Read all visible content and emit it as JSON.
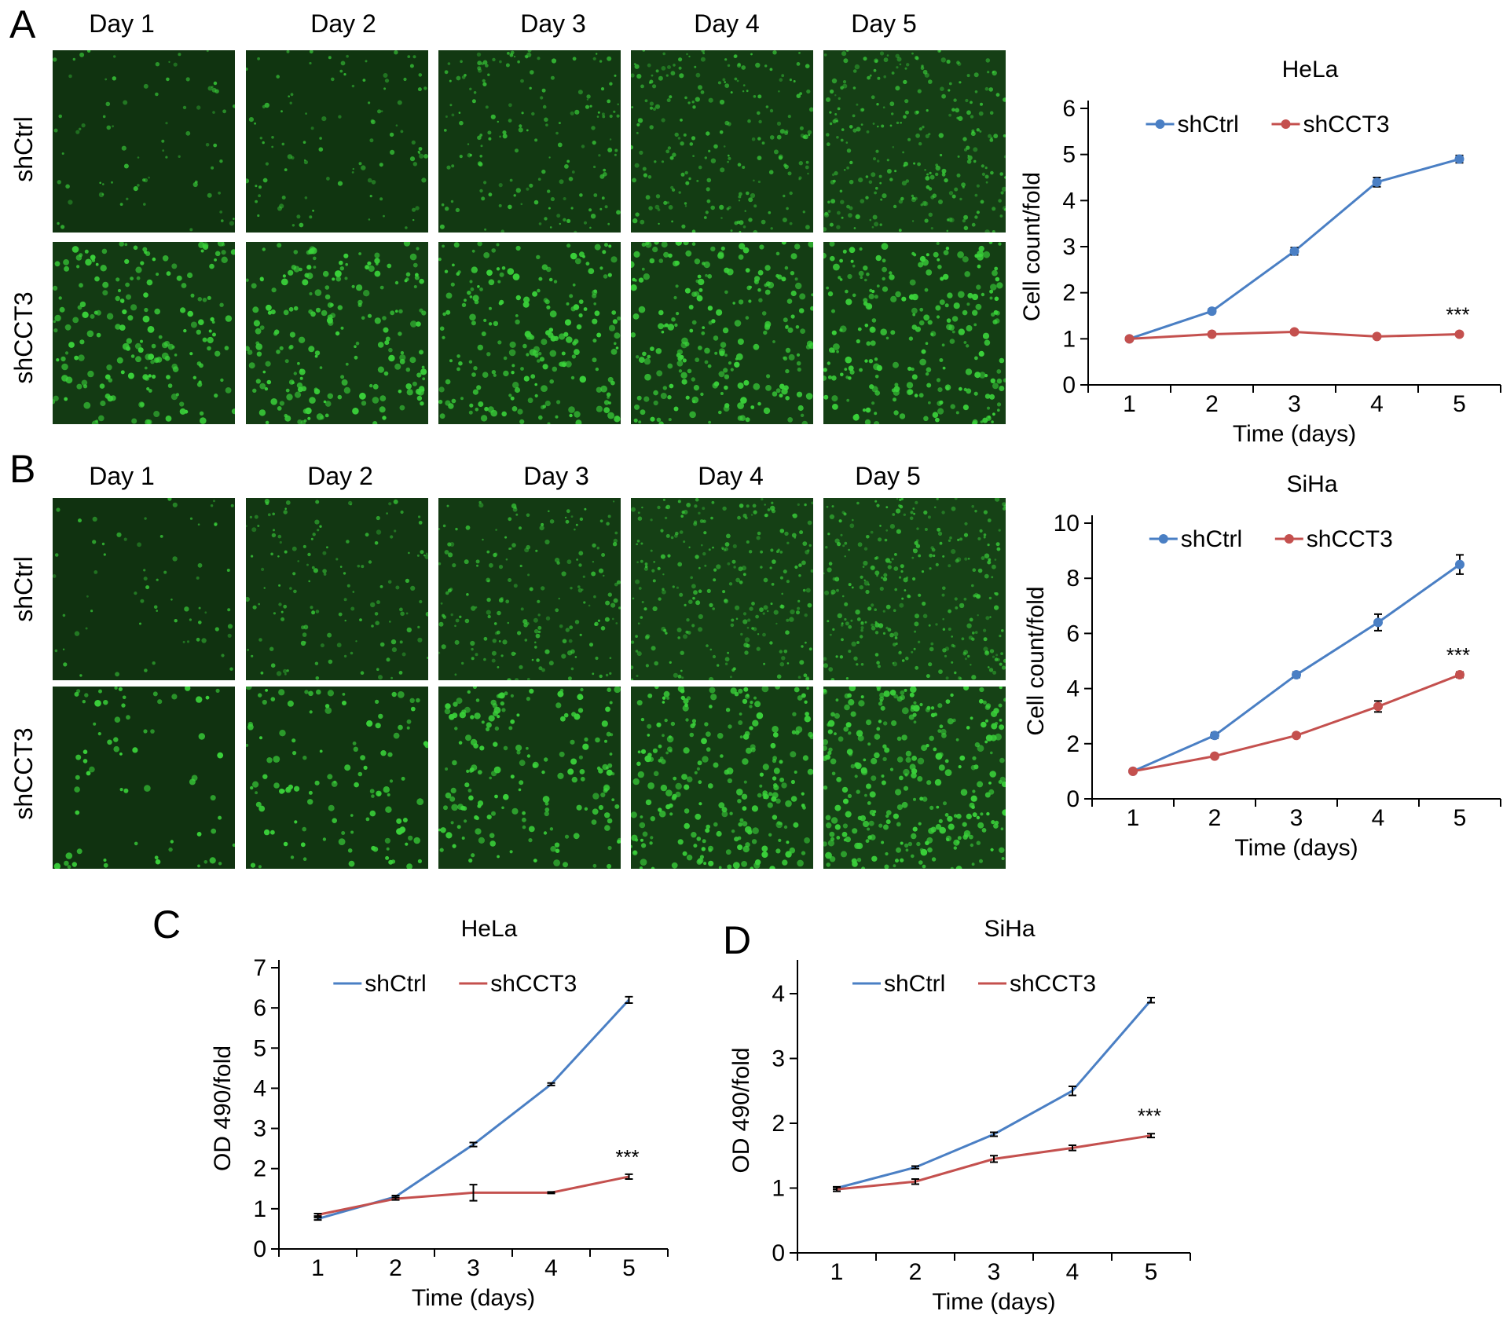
{
  "panel_a": {
    "letter": "A",
    "day_labels": [
      "Day 1",
      "Day 2",
      "Day 3",
      "Day 4",
      "Day 5"
    ],
    "row_labels": [
      "shCtrl",
      "shCCT3"
    ]
  },
  "panel_b": {
    "letter": "B",
    "day_labels": [
      "Day 1",
      "Day 2",
      "Day 3",
      "Day 4",
      "Day 5"
    ],
    "row_labels": [
      "shCtrl",
      "shCCT3"
    ]
  },
  "panel_c": {
    "letter": "C"
  },
  "panel_d": {
    "letter": "D"
  },
  "colors": {
    "shCtrl": "#4a7fc4",
    "shCCT3": "#c4504e",
    "fluorescence": "#3ad13a",
    "background": "#0d2a0d"
  },
  "micrograph_density": {
    "panel_a": {
      "shCtrl": [
        0.15,
        0.25,
        0.5,
        0.7,
        0.9
      ],
      "shCCT3": [
        0.6,
        0.65,
        0.7,
        0.75,
        0.8
      ]
    },
    "panel_b": {
      "shCtrl": [
        0.1,
        0.4,
        0.6,
        0.85,
        1.0
      ],
      "shCCT3": [
        0.1,
        0.3,
        0.55,
        0.8,
        1.0
      ]
    }
  },
  "chart_data": [
    {
      "id": "A",
      "type": "line",
      "title": "HeLa",
      "xlabel": "Time (days)",
      "ylabel": "Cell count/fold",
      "x": [
        1,
        2,
        3,
        4,
        5
      ],
      "xlim": [
        0.5,
        5.5
      ],
      "ylim": [
        0,
        6
      ],
      "yticks": [
        0,
        1,
        2,
        3,
        4,
        5,
        6
      ],
      "markers": true,
      "series": [
        {
          "name": "shCtrl",
          "values": [
            1.0,
            1.6,
            2.9,
            4.4,
            4.9
          ],
          "errors": [
            0.03,
            0.05,
            0.08,
            0.1,
            0.08
          ]
        },
        {
          "name": "shCCT3",
          "values": [
            1.0,
            1.1,
            1.15,
            1.05,
            1.1
          ],
          "errors": [
            0.03,
            0.03,
            0.03,
            0.03,
            0.03
          ]
        }
      ],
      "significance": "***",
      "legend": "top"
    },
    {
      "id": "B",
      "type": "line",
      "title": "SiHa",
      "xlabel": "Time (days)",
      "ylabel": "Cell count/fold",
      "x": [
        1,
        2,
        3,
        4,
        5
      ],
      "xlim": [
        0.5,
        5.5
      ],
      "ylim": [
        0,
        10
      ],
      "yticks": [
        0,
        2,
        4,
        6,
        8,
        10
      ],
      "markers": true,
      "series": [
        {
          "name": "shCtrl",
          "values": [
            1.0,
            2.3,
            4.5,
            6.4,
            8.5
          ],
          "errors": [
            0.05,
            0.1,
            0.1,
            0.3,
            0.35
          ]
        },
        {
          "name": "shCCT3",
          "values": [
            1.0,
            1.55,
            2.3,
            3.35,
            4.5
          ],
          "errors": [
            0.05,
            0.05,
            0.05,
            0.2,
            0.1
          ]
        }
      ],
      "significance": "***",
      "legend": "top"
    },
    {
      "id": "C",
      "type": "line",
      "title": "HeLa",
      "xlabel": "Time (days)",
      "ylabel": "OD 490/fold",
      "x": [
        1,
        2,
        3,
        4,
        5
      ],
      "xlim": [
        0.5,
        5.5
      ],
      "ylim": [
        0,
        7
      ],
      "yticks": [
        0,
        1,
        2,
        3,
        4,
        5,
        6,
        7
      ],
      "markers": false,
      "series": [
        {
          "name": "shCtrl",
          "values": [
            0.75,
            1.3,
            2.6,
            4.1,
            6.2
          ],
          "errors": [
            0.03,
            0.03,
            0.05,
            0.03,
            0.08
          ]
        },
        {
          "name": "shCCT3",
          "values": [
            0.85,
            1.25,
            1.4,
            1.4,
            1.8
          ],
          "errors": [
            0.03,
            0.03,
            0.2,
            0.02,
            0.06
          ]
        }
      ],
      "significance": "***",
      "legend": "top"
    },
    {
      "id": "D",
      "type": "line",
      "title": "SiHa",
      "xlabel": "Time (days)",
      "ylabel": "OD 490/fold",
      "x": [
        1,
        2,
        3,
        4,
        5
      ],
      "xlim": [
        0.5,
        5.5
      ],
      "ylim": [
        0,
        4.4
      ],
      "yticks": [
        0,
        1,
        2,
        3,
        4
      ],
      "markers": false,
      "series": [
        {
          "name": "shCtrl",
          "values": [
            1.0,
            1.32,
            1.83,
            2.5,
            3.9
          ],
          "errors": [
            0.02,
            0.02,
            0.03,
            0.07,
            0.04
          ]
        },
        {
          "name": "shCCT3",
          "values": [
            0.98,
            1.1,
            1.45,
            1.62,
            1.81
          ],
          "errors": [
            0.03,
            0.04,
            0.05,
            0.04,
            0.03
          ]
        }
      ],
      "significance": "***",
      "legend": "top"
    }
  ]
}
